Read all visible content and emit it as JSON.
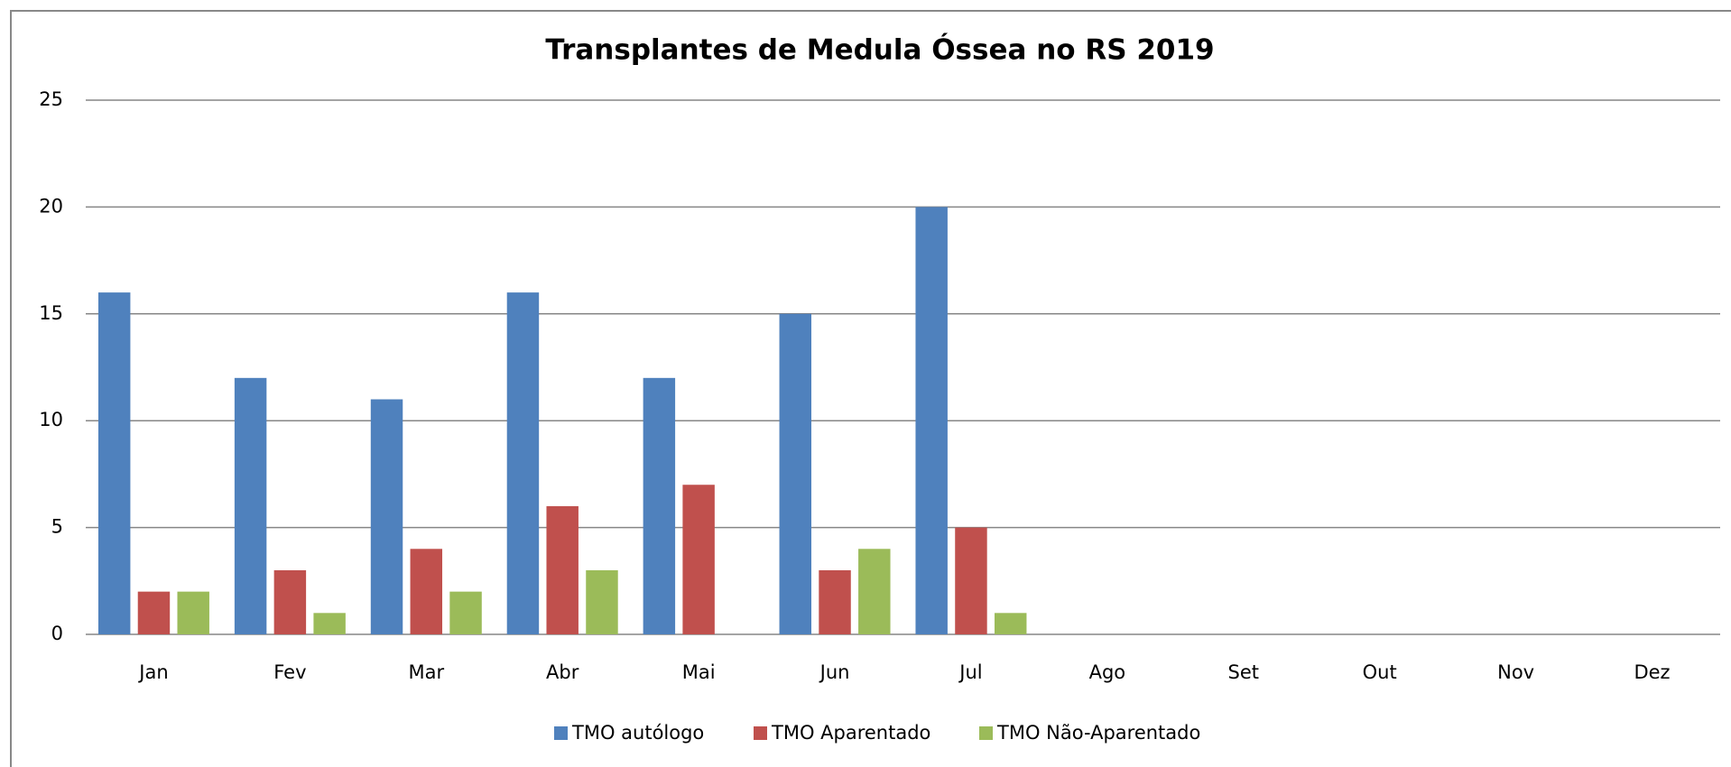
{
  "chart_data": {
    "type": "bar",
    "title": "Transplantes de Medula Óssea no RS 2019",
    "categories": [
      "Jan",
      "Fev",
      "Mar",
      "Abr",
      "Mai",
      "Jun",
      "Jul",
      "Ago",
      "Set",
      "Out",
      "Nov",
      "Dez"
    ],
    "series": [
      {
        "name": "TMO autólogo",
        "color": "#4f81bd",
        "values": [
          16,
          12,
          11,
          16,
          12,
          15,
          20,
          null,
          null,
          null,
          null,
          null
        ]
      },
      {
        "name": "TMO Aparentado",
        "color": "#c0504d",
        "values": [
          2,
          3,
          4,
          6,
          7,
          3,
          5,
          null,
          null,
          null,
          null,
          null
        ]
      },
      {
        "name": "TMO Não-Aparentado",
        "color": "#9bbb59",
        "values": [
          2,
          1,
          2,
          3,
          0,
          4,
          1,
          null,
          null,
          null,
          null,
          null
        ]
      }
    ],
    "ylim": [
      0,
      25
    ],
    "yticks": [
      0,
      5,
      10,
      15,
      20,
      25
    ],
    "grid": true,
    "legend": "bottom"
  }
}
